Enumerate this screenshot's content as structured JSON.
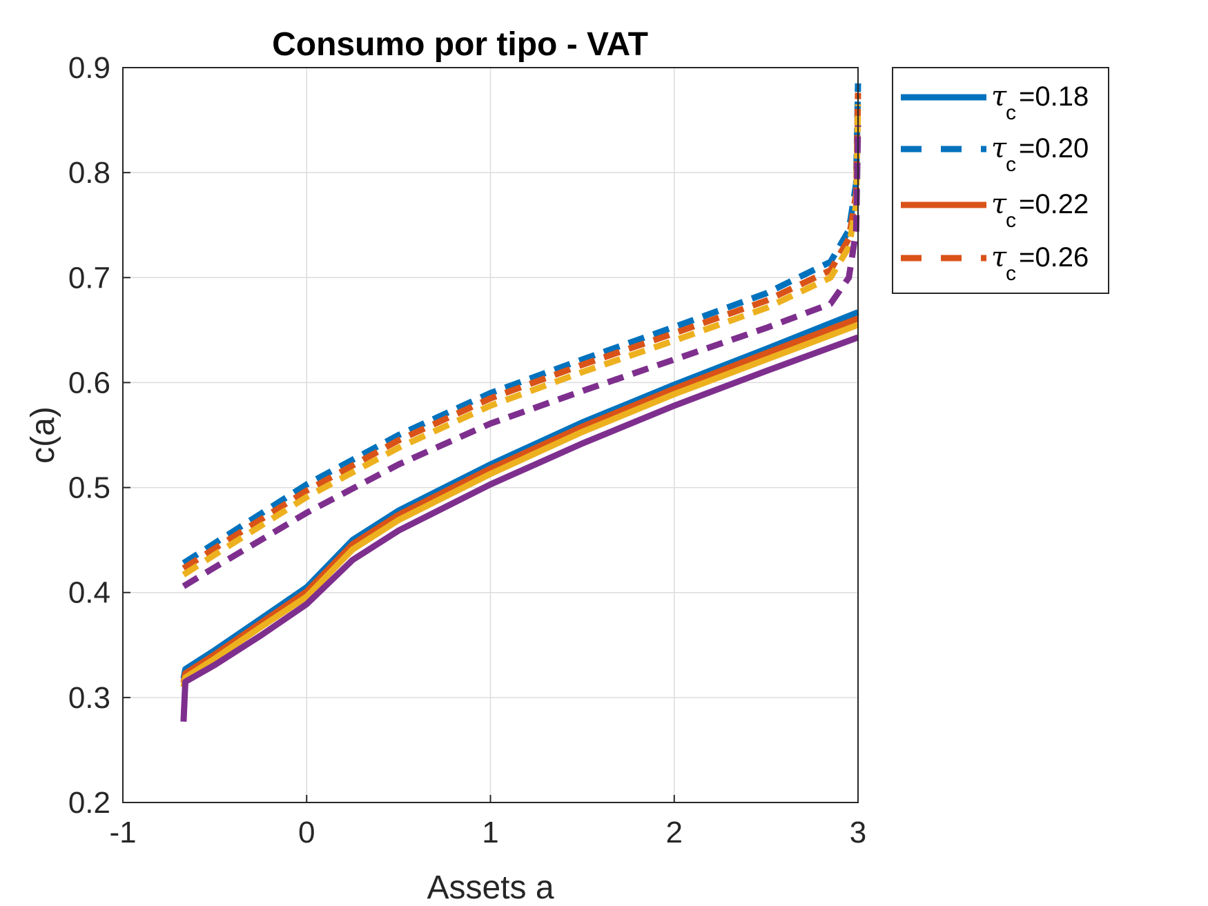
{
  "chart_data": {
    "type": "line",
    "title": "Consumo por tipo - VAT",
    "xlabel": "Assets a",
    "ylabel": "c(a)",
    "xlim": [
      -1,
      3
    ],
    "ylim": [
      0.2,
      0.9
    ],
    "xticks": [
      -1,
      0,
      1,
      2,
      3
    ],
    "xtick_labels": [
      "-1",
      "0",
      "1",
      "2",
      "3"
    ],
    "yticks": [
      0.2,
      0.3,
      0.4,
      0.5,
      0.6,
      0.7,
      0.8,
      0.9
    ],
    "ytick_labels": [
      "0.2",
      "0.3",
      "0.4",
      "0.5",
      "0.6",
      "0.7",
      "0.8",
      "0.9"
    ],
    "grid": true,
    "legend_position": "outside-top-right",
    "legend": [
      {
        "symbol": "τ",
        "sub": "c",
        "text": "=0.18",
        "color": "#0072BD",
        "dash": "solid"
      },
      {
        "symbol": "τ",
        "sub": "c",
        "text": "=0.20",
        "color": "#0072BD",
        "dash": "dashed"
      },
      {
        "symbol": "τ",
        "sub": "c",
        "text": "=0.22",
        "color": "#D95319",
        "dash": "solid"
      },
      {
        "symbol": "τ",
        "sub": "c",
        "text": "=0.26",
        "color": "#D95319",
        "dash": "dashed"
      }
    ],
    "series": [
      {
        "color": "#0072BD",
        "dash": "solid",
        "x": [
          -0.67,
          -0.66,
          -0.5,
          -0.25,
          0.0,
          0.25,
          0.5,
          1.0,
          1.5,
          2.0,
          2.5,
          3.0
        ],
        "y": [
          0.318,
          0.327,
          0.345,
          0.375,
          0.405,
          0.45,
          0.478,
          0.522,
          0.562,
          0.598,
          0.632,
          0.667
        ]
      },
      {
        "color": "#D95319",
        "dash": "solid",
        "x": [
          -0.67,
          -0.66,
          -0.5,
          -0.25,
          0.0,
          0.25,
          0.5,
          1.0,
          1.5,
          2.0,
          2.5,
          3.0
        ],
        "y": [
          0.314,
          0.323,
          0.341,
          0.371,
          0.401,
          0.446,
          0.474,
          0.518,
          0.558,
          0.594,
          0.628,
          0.661
        ]
      },
      {
        "color": "#EDB120",
        "dash": "solid",
        "x": [
          -0.67,
          -0.66,
          -0.5,
          -0.25,
          0.0,
          0.25,
          0.5,
          1.0,
          1.5,
          2.0,
          2.5,
          3.0
        ],
        "y": [
          0.31,
          0.319,
          0.337,
          0.367,
          0.396,
          0.441,
          0.469,
          0.513,
          0.553,
          0.589,
          0.622,
          0.655
        ]
      },
      {
        "color": "#7E2F8E",
        "dash": "solid",
        "x": [
          -0.67,
          -0.66,
          -0.5,
          -0.25,
          0.0,
          0.25,
          0.5,
          1.0,
          1.5,
          2.0,
          2.5,
          3.0
        ],
        "y": [
          0.277,
          0.315,
          0.331,
          0.359,
          0.389,
          0.431,
          0.459,
          0.503,
          0.542,
          0.578,
          0.611,
          0.643
        ]
      },
      {
        "color": "#0072BD",
        "dash": "dashed",
        "x": [
          -0.67,
          -0.5,
          0.0,
          0.5,
          1.0,
          1.5,
          2.0,
          2.5,
          2.85,
          2.95,
          2.99,
          3.0
        ],
        "y": [
          0.428,
          0.447,
          0.503,
          0.55,
          0.59,
          0.622,
          0.653,
          0.685,
          0.715,
          0.745,
          0.79,
          0.885
        ]
      },
      {
        "color": "#D95319",
        "dash": "dashed",
        "x": [
          -0.67,
          -0.5,
          0.0,
          0.5,
          1.0,
          1.5,
          2.0,
          2.5,
          2.85,
          2.95,
          2.99,
          3.0
        ],
        "y": [
          0.423,
          0.442,
          0.497,
          0.545,
          0.585,
          0.617,
          0.647,
          0.678,
          0.707,
          0.737,
          0.78,
          0.876
        ]
      },
      {
        "color": "#EDB120",
        "dash": "dashed",
        "x": [
          -0.67,
          -0.5,
          0.0,
          0.5,
          1.0,
          1.5,
          2.0,
          2.5,
          2.85,
          2.95,
          2.99,
          3.0
        ],
        "y": [
          0.417,
          0.436,
          0.491,
          0.538,
          0.578,
          0.61,
          0.64,
          0.671,
          0.7,
          0.729,
          0.77,
          0.865
        ]
      },
      {
        "color": "#7E2F8E",
        "dash": "dashed",
        "x": [
          -0.67,
          -0.5,
          0.0,
          0.5,
          1.0,
          1.5,
          2.0,
          2.5,
          2.85,
          2.95,
          2.99,
          3.0
        ],
        "y": [
          0.406,
          0.424,
          0.476,
          0.522,
          0.561,
          0.592,
          0.622,
          0.652,
          0.675,
          0.7,
          0.745,
          0.845
        ]
      }
    ]
  }
}
